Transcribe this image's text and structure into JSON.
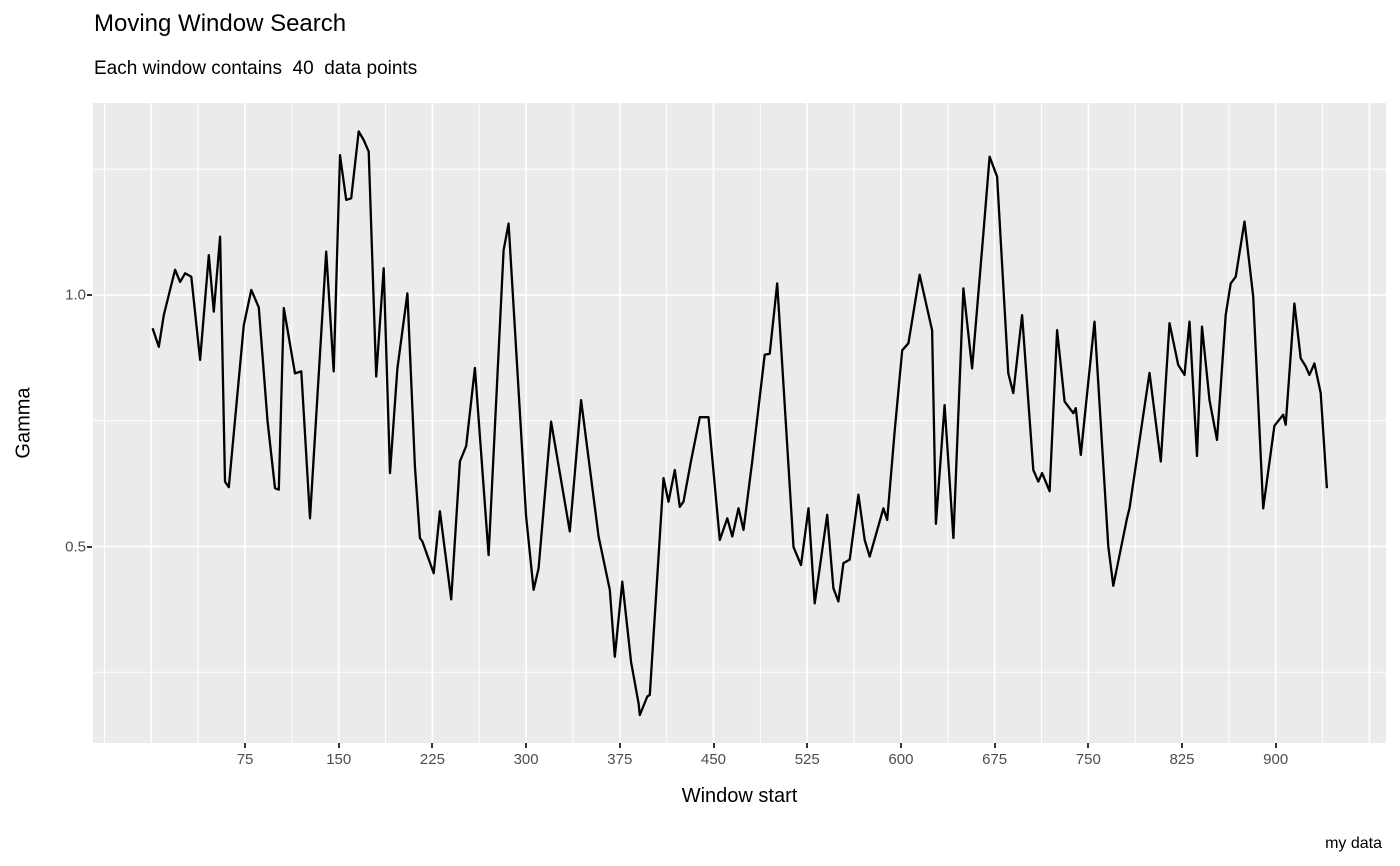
{
  "chart": {
    "title": "Moving Window Search",
    "subtitle": "Each window contains  40  data points",
    "caption": "my data",
    "x_axis": {
      "label": "Window start",
      "ticks": [
        75,
        150,
        225,
        300,
        375,
        450,
        525,
        600,
        675,
        750,
        825,
        900
      ],
      "tick_labels": [
        "75",
        "150",
        "225",
        "300",
        "375",
        "450",
        "525",
        "600",
        "675",
        "750",
        "825",
        "900"
      ],
      "major_grid": [
        0,
        75,
        150,
        225,
        300,
        375,
        450,
        525,
        600,
        675,
        750,
        825,
        900,
        975
      ],
      "minor_grid": [
        -37.5,
        37.5,
        112.5,
        187.5,
        262.5,
        337.5,
        412.5,
        487.5,
        562.5,
        637.5,
        712.5,
        787.5,
        862.5,
        937.5
      ],
      "lim": [
        -46.7,
        988.3
      ]
    },
    "y_axis": {
      "label": "Gamma",
      "ticks": [
        0.5,
        1.0
      ],
      "tick_labels": [
        "0.5",
        "1.0"
      ],
      "major_grid": [
        0.5,
        1.0
      ],
      "minor_grid": [
        0.25,
        0.75,
        1.25
      ],
      "lim": [
        0.1095,
        1.3815
      ]
    },
    "colors": {
      "panel_background": "#EBEBEB",
      "grid": "#FFFFFF",
      "line": "#000000",
      "tick_text": "#4d4d4d",
      "tick_mark": "#333333",
      "text": "#000000",
      "page_background": "#FFFFFF"
    }
  },
  "chart_data": {
    "type": "line",
    "title": "Moving Window Search",
    "subtitle": "Each window contains  40  data points",
    "caption": "my data",
    "xlabel": "Window start",
    "ylabel": "Gamma",
    "xlim": [
      -46.7,
      988.3
    ],
    "ylim": [
      0.1095,
      1.3815
    ],
    "grid": true,
    "legend": false,
    "points": [
      [
        1,
        0.934
      ],
      [
        6,
        0.897
      ],
      [
        10,
        0.96
      ],
      [
        16,
        1.02
      ],
      [
        19,
        1.05
      ],
      [
        23,
        1.026
      ],
      [
        27,
        1.043
      ],
      [
        32,
        1.036
      ],
      [
        39,
        0.871
      ],
      [
        46,
        1.079
      ],
      [
        50,
        0.967
      ],
      [
        55,
        1.116
      ],
      [
        59,
        0.629
      ],
      [
        62,
        0.618
      ],
      [
        74,
        0.94
      ],
      [
        80,
        1.01
      ],
      [
        86,
        0.975
      ],
      [
        93,
        0.75
      ],
      [
        99,
        0.616
      ],
      [
        102,
        0.613
      ],
      [
        106,
        0.974
      ],
      [
        115,
        0.844
      ],
      [
        120,
        0.848
      ],
      [
        127,
        0.556
      ],
      [
        140,
        1.086
      ],
      [
        146,
        0.848
      ],
      [
        151,
        1.278
      ],
      [
        156,
        1.189
      ],
      [
        160,
        1.192
      ],
      [
        166,
        1.325
      ],
      [
        170,
        1.308
      ],
      [
        174,
        1.285
      ],
      [
        180,
        0.838
      ],
      [
        186,
        1.053
      ],
      [
        191,
        0.646
      ],
      [
        197,
        0.854
      ],
      [
        205,
        1.003
      ],
      [
        211,
        0.66
      ],
      [
        215,
        0.517
      ],
      [
        217,
        0.51
      ],
      [
        226,
        0.447
      ],
      [
        231,
        0.57
      ],
      [
        240,
        0.395
      ],
      [
        247,
        0.669
      ],
      [
        252,
        0.7
      ],
      [
        259,
        0.855
      ],
      [
        270,
        0.483
      ],
      [
        282,
        1.089
      ],
      [
        286,
        1.142
      ],
      [
        300,
        0.56
      ],
      [
        306,
        0.414
      ],
      [
        310,
        0.457
      ],
      [
        320,
        0.748
      ],
      [
        335,
        0.53
      ],
      [
        344,
        0.791
      ],
      [
        358,
        0.52
      ],
      [
        367,
        0.414
      ],
      [
        371,
        0.281
      ],
      [
        377,
        0.43
      ],
      [
        384,
        0.27
      ],
      [
        390,
        0.188
      ],
      [
        391,
        0.165
      ],
      [
        397,
        0.202
      ],
      [
        399,
        0.205
      ],
      [
        410,
        0.636
      ],
      [
        414,
        0.589
      ],
      [
        419,
        0.652
      ],
      [
        423,
        0.579
      ],
      [
        426,
        0.589
      ],
      [
        432,
        0.67
      ],
      [
        439,
        0.757
      ],
      [
        446,
        0.757
      ],
      [
        455,
        0.513
      ],
      [
        461,
        0.556
      ],
      [
        465,
        0.52
      ],
      [
        470,
        0.576
      ],
      [
        474,
        0.533
      ],
      [
        479,
        0.63
      ],
      [
        481,
        0.669
      ],
      [
        491,
        0.881
      ],
      [
        495,
        0.883
      ],
      [
        501,
        1.023
      ],
      [
        514,
        0.499
      ],
      [
        520,
        0.463
      ],
      [
        526,
        0.576
      ],
      [
        531,
        0.387
      ],
      [
        541,
        0.563
      ],
      [
        546,
        0.417
      ],
      [
        550,
        0.391
      ],
      [
        554,
        0.467
      ],
      [
        559,
        0.474
      ],
      [
        566,
        0.603
      ],
      [
        571,
        0.513
      ],
      [
        575,
        0.48
      ],
      [
        586,
        0.576
      ],
      [
        589,
        0.553
      ],
      [
        595,
        0.73
      ],
      [
        601,
        0.89
      ],
      [
        606,
        0.904
      ],
      [
        615,
        1.04
      ],
      [
        625,
        0.93
      ],
      [
        628,
        0.545
      ],
      [
        635,
        0.781
      ],
      [
        642,
        0.517
      ],
      [
        650,
        1.013
      ],
      [
        657,
        0.854
      ],
      [
        666,
        1.123
      ],
      [
        671,
        1.275
      ],
      [
        677,
        1.235
      ],
      [
        686,
        0.844
      ],
      [
        690,
        0.805
      ],
      [
        697,
        0.96
      ],
      [
        706,
        0.652
      ],
      [
        710,
        0.629
      ],
      [
        713,
        0.646
      ],
      [
        719,
        0.61
      ],
      [
        725,
        0.93
      ],
      [
        731,
        0.788
      ],
      [
        738,
        0.765
      ],
      [
        740,
        0.775
      ],
      [
        744,
        0.682
      ],
      [
        755,
        0.947
      ],
      [
        766,
        0.5
      ],
      [
        770,
        0.422
      ],
      [
        781,
        0.556
      ],
      [
        783,
        0.576
      ],
      [
        799,
        0.845
      ],
      [
        808,
        0.669
      ],
      [
        815,
        0.944
      ],
      [
        822,
        0.861
      ],
      [
        827,
        0.841
      ],
      [
        831,
        0.947
      ],
      [
        837,
        0.68
      ],
      [
        841,
        0.937
      ],
      [
        847,
        0.791
      ],
      [
        853,
        0.712
      ],
      [
        860,
        0.96
      ],
      [
        864,
        1.023
      ],
      [
        868,
        1.036
      ],
      [
        875,
        1.146
      ],
      [
        882,
        0.997
      ],
      [
        890,
        0.576
      ],
      [
        899,
        0.74
      ],
      [
        906,
        0.762
      ],
      [
        908,
        0.742
      ],
      [
        915,
        0.983
      ],
      [
        920,
        0.874
      ],
      [
        924,
        0.858
      ],
      [
        927,
        0.841
      ],
      [
        931,
        0.864
      ],
      [
        936,
        0.805
      ],
      [
        941,
        0.616
      ]
    ]
  }
}
